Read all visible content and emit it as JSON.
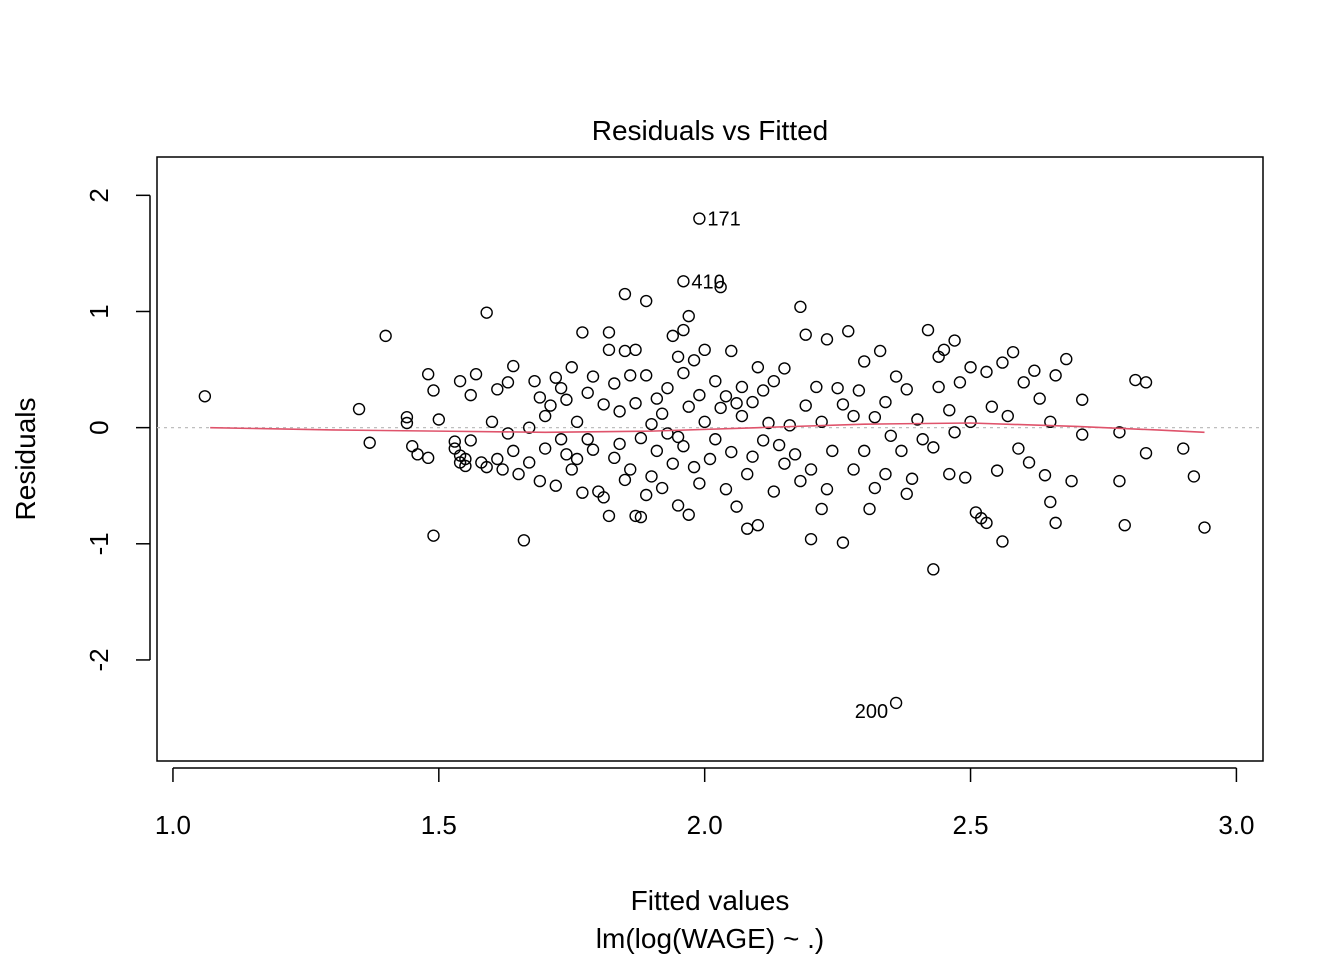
{
  "chart_data": {
    "type": "scatter",
    "title": "Residuals vs Fitted",
    "xlabel": "Fitted values",
    "xlabel_sub": "lm(log(WAGE) ~ .)",
    "ylabel": "Residuals",
    "xlim": [
      0.97,
      3.05
    ],
    "ylim": [
      -2.87,
      2.33
    ],
    "xticks": [
      1.0,
      1.5,
      2.0,
      2.5,
      3.0
    ],
    "xtick_labels": [
      "1.0",
      "1.5",
      "2.0",
      "2.5",
      "3.0"
    ],
    "yticks": [
      -2,
      -1,
      0,
      1,
      2
    ],
    "ytick_labels": [
      "-2",
      "-1",
      "0",
      "1",
      "2"
    ],
    "reference_line": 0,
    "grid": false,
    "colors": {
      "points": "#000000",
      "smooth": "#DF536B",
      "reference": "#BEBEBE"
    },
    "labeled_points": [
      {
        "label": "171",
        "x": 1.99,
        "y": 1.8,
        "side": "right"
      },
      {
        "label": "410",
        "x": 1.96,
        "y": 1.26,
        "side": "right"
      },
      {
        "label": "200",
        "x": 2.36,
        "y": -2.37,
        "side": "left"
      }
    ],
    "points": [
      [
        1.06,
        0.27
      ],
      [
        1.35,
        0.16
      ],
      [
        1.37,
        -0.13
      ],
      [
        1.4,
        0.79
      ],
      [
        1.44,
        0.09
      ],
      [
        1.44,
        0.04
      ],
      [
        1.45,
        -0.16
      ],
      [
        1.46,
        -0.23
      ],
      [
        1.48,
        -0.26
      ],
      [
        1.48,
        0.46
      ],
      [
        1.49,
        0.32
      ],
      [
        1.49,
        -0.93
      ],
      [
        1.5,
        0.07
      ],
      [
        1.53,
        -0.12
      ],
      [
        1.53,
        -0.18
      ],
      [
        1.54,
        -0.24
      ],
      [
        1.54,
        -0.3
      ],
      [
        1.54,
        0.4
      ],
      [
        1.55,
        -0.27
      ],
      [
        1.55,
        -0.33
      ],
      [
        1.56,
        -0.11
      ],
      [
        1.56,
        0.28
      ],
      [
        1.57,
        0.46
      ],
      [
        1.58,
        -0.3
      ],
      [
        1.59,
        0.99
      ],
      [
        1.59,
        -0.34
      ],
      [
        1.6,
        0.05
      ],
      [
        1.61,
        0.33
      ],
      [
        1.61,
        -0.27
      ],
      [
        1.62,
        -0.36
      ],
      [
        1.63,
        -0.05
      ],
      [
        1.63,
        0.39
      ],
      [
        1.64,
        0.53
      ],
      [
        1.64,
        -0.2
      ],
      [
        1.65,
        -0.4
      ],
      [
        1.66,
        -0.97
      ],
      [
        1.67,
        0.0
      ],
      [
        1.67,
        -0.3
      ],
      [
        1.68,
        0.4
      ],
      [
        1.69,
        0.26
      ],
      [
        1.69,
        -0.46
      ],
      [
        1.7,
        -0.18
      ],
      [
        1.7,
        0.1
      ],
      [
        1.71,
        0.19
      ],
      [
        1.72,
        0.43
      ],
      [
        1.72,
        -0.5
      ],
      [
        1.73,
        -0.1
      ],
      [
        1.73,
        0.34
      ],
      [
        1.74,
        -0.23
      ],
      [
        1.74,
        0.24
      ],
      [
        1.75,
        -0.36
      ],
      [
        1.75,
        0.52
      ],
      [
        1.76,
        0.05
      ],
      [
        1.76,
        -0.27
      ],
      [
        1.77,
        0.82
      ],
      [
        1.77,
        -0.56
      ],
      [
        1.78,
        0.3
      ],
      [
        1.78,
        -0.1
      ],
      [
        1.79,
        0.44
      ],
      [
        1.79,
        -0.19
      ],
      [
        1.8,
        -0.55
      ],
      [
        1.81,
        0.2
      ],
      [
        1.81,
        -0.6
      ],
      [
        1.82,
        0.82
      ],
      [
        1.82,
        0.67
      ],
      [
        1.82,
        -0.76
      ],
      [
        1.83,
        0.38
      ],
      [
        1.83,
        -0.26
      ],
      [
        1.84,
        -0.14
      ],
      [
        1.84,
        0.14
      ],
      [
        1.85,
        0.66
      ],
      [
        1.85,
        -0.45
      ],
      [
        1.85,
        1.15
      ],
      [
        1.86,
        0.45
      ],
      [
        1.86,
        -0.36
      ],
      [
        1.87,
        0.67
      ],
      [
        1.87,
        0.21
      ],
      [
        1.87,
        -0.76
      ],
      [
        1.88,
        -0.09
      ],
      [
        1.88,
        -0.77
      ],
      [
        1.89,
        1.09
      ],
      [
        1.89,
        0.45
      ],
      [
        1.89,
        -0.58
      ],
      [
        1.9,
        0.03
      ],
      [
        1.9,
        -0.42
      ],
      [
        1.91,
        0.25
      ],
      [
        1.91,
        -0.2
      ],
      [
        1.92,
        0.12
      ],
      [
        1.92,
        -0.52
      ],
      [
        1.93,
        -0.05
      ],
      [
        1.93,
        0.34
      ],
      [
        1.94,
        0.79
      ],
      [
        1.94,
        -0.31
      ],
      [
        1.95,
        0.61
      ],
      [
        1.95,
        -0.08
      ],
      [
        1.95,
        -0.67
      ],
      [
        1.96,
        0.84
      ],
      [
        1.96,
        0.47
      ],
      [
        1.96,
        -0.16
      ],
      [
        1.97,
        0.96
      ],
      [
        1.97,
        0.18
      ],
      [
        1.97,
        -0.75
      ],
      [
        1.98,
        0.58
      ],
      [
        1.98,
        -0.34
      ],
      [
        1.99,
        0.28
      ],
      [
        1.99,
        -0.48
      ],
      [
        2.0,
        0.67
      ],
      [
        2.0,
        0.05
      ],
      [
        2.01,
        -0.27
      ],
      [
        2.02,
        0.4
      ],
      [
        2.02,
        -0.1
      ],
      [
        2.03,
        1.21
      ],
      [
        2.03,
        0.17
      ],
      [
        2.04,
        -0.53
      ],
      [
        2.04,
        0.27
      ],
      [
        2.05,
        0.66
      ],
      [
        2.05,
        -0.21
      ],
      [
        2.06,
        0.21
      ],
      [
        2.06,
        -0.68
      ],
      [
        2.07,
        0.35
      ],
      [
        2.07,
        0.1
      ],
      [
        2.08,
        -0.4
      ],
      [
        2.08,
        -0.87
      ],
      [
        2.09,
        0.22
      ],
      [
        2.09,
        -0.25
      ],
      [
        2.1,
        0.52
      ],
      [
        2.1,
        -0.84
      ],
      [
        2.11,
        0.32
      ],
      [
        2.11,
        -0.11
      ],
      [
        2.12,
        0.04
      ],
      [
        2.13,
        -0.55
      ],
      [
        2.13,
        0.4
      ],
      [
        2.14,
        -0.15
      ],
      [
        2.15,
        0.51
      ],
      [
        2.15,
        -0.31
      ],
      [
        2.16,
        0.02
      ],
      [
        2.17,
        -0.23
      ],
      [
        2.18,
        1.04
      ],
      [
        2.18,
        -0.46
      ],
      [
        2.19,
        0.19
      ],
      [
        2.19,
        0.8
      ],
      [
        2.2,
        -0.36
      ],
      [
        2.2,
        -0.96
      ],
      [
        2.21,
        0.35
      ],
      [
        2.22,
        -0.7
      ],
      [
        2.22,
        0.05
      ],
      [
        2.23,
        0.76
      ],
      [
        2.23,
        -0.53
      ],
      [
        2.24,
        -0.2
      ],
      [
        2.25,
        0.34
      ],
      [
        2.26,
        -0.99
      ],
      [
        2.26,
        0.2
      ],
      [
        2.27,
        0.83
      ],
      [
        2.28,
        -0.36
      ],
      [
        2.28,
        0.1
      ],
      [
        2.29,
        0.32
      ],
      [
        2.3,
        -0.2
      ],
      [
        2.3,
        0.57
      ],
      [
        2.31,
        -0.7
      ],
      [
        2.32,
        -0.52
      ],
      [
        2.32,
        0.09
      ],
      [
        2.33,
        0.66
      ],
      [
        2.34,
        -0.4
      ],
      [
        2.34,
        0.22
      ],
      [
        2.35,
        -0.07
      ],
      [
        2.36,
        0.44
      ],
      [
        2.37,
        -0.2
      ],
      [
        2.38,
        0.33
      ],
      [
        2.38,
        -0.57
      ],
      [
        2.39,
        -0.44
      ],
      [
        2.4,
        0.07
      ],
      [
        2.41,
        -0.1
      ],
      [
        2.42,
        0.84
      ],
      [
        2.43,
        -1.22
      ],
      [
        2.43,
        -0.17
      ],
      [
        2.44,
        0.35
      ],
      [
        2.44,
        0.61
      ],
      [
        2.45,
        0.67
      ],
      [
        2.46,
        0.15
      ],
      [
        2.46,
        -0.4
      ],
      [
        2.47,
        0.75
      ],
      [
        2.47,
        -0.04
      ],
      [
        2.48,
        0.39
      ],
      [
        2.49,
        -0.43
      ],
      [
        2.5,
        0.52
      ],
      [
        2.5,
        0.05
      ],
      [
        2.51,
        -0.73
      ],
      [
        2.52,
        -0.78
      ],
      [
        2.53,
        0.48
      ],
      [
        2.53,
        -0.82
      ],
      [
        2.54,
        0.18
      ],
      [
        2.55,
        -0.37
      ],
      [
        2.56,
        0.56
      ],
      [
        2.56,
        -0.98
      ],
      [
        2.57,
        0.1
      ],
      [
        2.58,
        0.65
      ],
      [
        2.59,
        -0.18
      ],
      [
        2.6,
        0.39
      ],
      [
        2.61,
        -0.3
      ],
      [
        2.62,
        0.49
      ],
      [
        2.63,
        0.25
      ],
      [
        2.64,
        -0.41
      ],
      [
        2.65,
        0.05
      ],
      [
        2.65,
        -0.64
      ],
      [
        2.66,
        -0.82
      ],
      [
        2.66,
        0.45
      ],
      [
        2.68,
        0.59
      ],
      [
        2.69,
        -0.46
      ],
      [
        2.71,
        0.24
      ],
      [
        2.71,
        -0.06
      ],
      [
        2.78,
        -0.04
      ],
      [
        2.78,
        -0.46
      ],
      [
        2.79,
        -0.84
      ],
      [
        2.81,
        0.41
      ],
      [
        2.83,
        0.39
      ],
      [
        2.83,
        -0.22
      ],
      [
        2.9,
        -0.18
      ],
      [
        2.92,
        -0.42
      ],
      [
        2.94,
        -0.86
      ]
    ],
    "smooth": [
      [
        1.07,
        0.0
      ],
      [
        1.3,
        -0.02
      ],
      [
        1.5,
        -0.03
      ],
      [
        1.7,
        -0.04
      ],
      [
        1.9,
        -0.03
      ],
      [
        2.1,
        0.0
      ],
      [
        2.3,
        0.03
      ],
      [
        2.5,
        0.04
      ],
      [
        2.7,
        0.01
      ],
      [
        2.85,
        -0.02
      ],
      [
        2.94,
        -0.04
      ]
    ]
  }
}
